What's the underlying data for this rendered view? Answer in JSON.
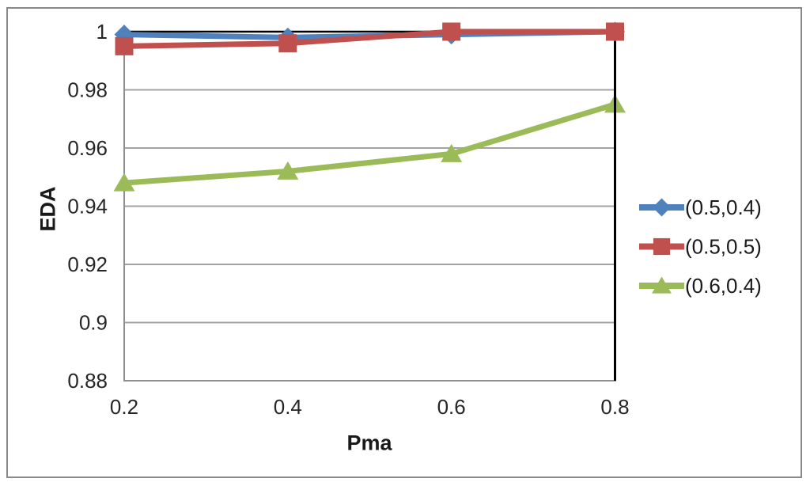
{
  "figure": {
    "background": "#ffffff",
    "border_color": "#898989"
  },
  "chart_data": {
    "type": "line",
    "title": "",
    "xlabel": "Pma",
    "ylabel": "EDA",
    "x": [
      0.2,
      0.4,
      0.6,
      0.8
    ],
    "x_tick_labels": [
      "0.2",
      "0.4",
      "0.6",
      "0.8"
    ],
    "y_tick_values": [
      1,
      0.98,
      0.96,
      0.94,
      0.92,
      0.9,
      0.88
    ],
    "y_tick_labels": [
      "1",
      "0.98",
      "0.96",
      "0.94",
      "0.92",
      "0.9",
      "0.88"
    ],
    "xlim": [
      0.2,
      0.8
    ],
    "ylim": [
      0.88,
      1.0
    ],
    "grid": "horizontal",
    "legend_position": "right-center",
    "legend_entries": [
      "(0.5,0.4)",
      "(0.5,0.5)",
      "(0.6,0.4)"
    ],
    "series": [
      {
        "name": "(0.5,0.4)",
        "marker": "diamond",
        "color": "#4F81BD",
        "values": [
          0.999,
          0.998,
          0.999,
          1.0
        ]
      },
      {
        "name": "(0.5,0.5)",
        "marker": "square",
        "color": "#C0504D",
        "values": [
          0.995,
          0.996,
          1.0,
          1.0
        ]
      },
      {
        "name": "(0.6,0.4)",
        "marker": "triangle",
        "color": "#9BBB59",
        "values": [
          0.948,
          0.952,
          0.958,
          0.975
        ]
      }
    ],
    "style": {
      "gridline_color": "#A3A3A3",
      "axis_color": "#8E8E8E",
      "frame_top_color": "#000000",
      "frame_right_color": "#000000",
      "tick_text_color": "#262626",
      "label_text_color": "#1a1a1a",
      "series_line_width": 7
    }
  }
}
